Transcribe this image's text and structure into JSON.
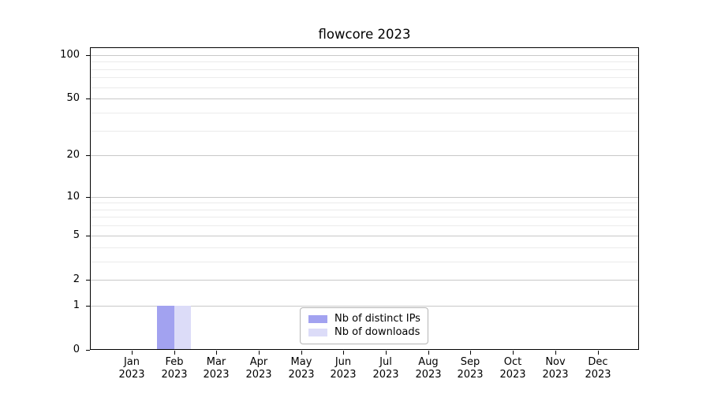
{
  "chart_data": {
    "type": "bar",
    "title": "flowcore 2023",
    "categories": [
      "Jan",
      "Feb",
      "Mar",
      "Apr",
      "May",
      "Jun",
      "Jul",
      "Aug",
      "Sep",
      "Oct",
      "Nov",
      "Dec"
    ],
    "tick_year": "2023",
    "series": [
      {
        "name": "Nb of distinct IPs",
        "color": "#a2a2f0",
        "values": [
          0,
          1,
          0,
          0,
          0,
          0,
          0,
          0,
          0,
          0,
          0,
          0
        ]
      },
      {
        "name": "Nb of downloads",
        "color": "#dcdcf8",
        "values": [
          0,
          1,
          0,
          0,
          0,
          0,
          0,
          0,
          0,
          0,
          0,
          0
        ]
      }
    ],
    "xlabel": "",
    "ylabel": "",
    "yscale": "log1p",
    "ylim": [
      0,
      113
    ],
    "yticks": [
      0,
      1,
      2,
      5,
      10,
      20,
      50,
      100
    ],
    "yticks_minor": [
      3,
      4,
      6,
      7,
      8,
      9,
      30,
      40,
      60,
      70,
      80,
      90
    ],
    "grid": "horizontal-only",
    "legend": {
      "position": "lower-center"
    }
  },
  "colors": {
    "background": "#ffffff",
    "spine": "#000000",
    "grid_major": "#c8c8c8",
    "grid_minor": "#ebebeb",
    "tick_text": "#000000",
    "legend_border": "#b5b5b5"
  }
}
